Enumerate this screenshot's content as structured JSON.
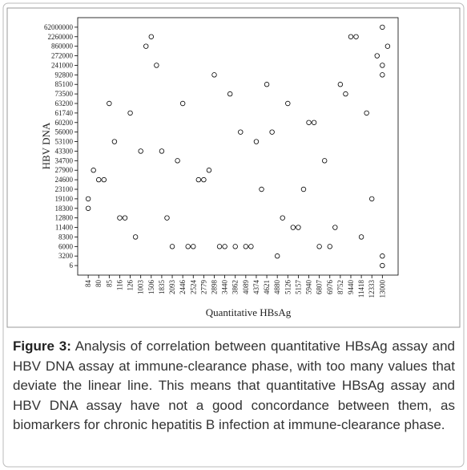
{
  "chart_data": {
    "type": "scatter",
    "x_label": "Quantitative HBsAg",
    "y_label": "HBV DNA",
    "xlim": [
      -1,
      60
    ],
    "ylim": [
      0,
      27
    ],
    "xticks": [
      {
        "value": 1,
        "label": "84"
      },
      {
        "value": 3,
        "label": "80"
      },
      {
        "value": 5,
        "label": "85"
      },
      {
        "value": 7,
        "label": "116"
      },
      {
        "value": 9,
        "label": "126"
      },
      {
        "value": 11,
        "label": "1003"
      },
      {
        "value": 13,
        "label": "1506"
      },
      {
        "value": 15,
        "label": "1835"
      },
      {
        "value": 17,
        "label": "2093"
      },
      {
        "value": 19,
        "label": "2446"
      },
      {
        "value": 21,
        "label": "2524"
      },
      {
        "value": 23,
        "label": "2779"
      },
      {
        "value": 25,
        "label": "2898"
      },
      {
        "value": 27,
        "label": "3440"
      },
      {
        "value": 29,
        "label": "3862"
      },
      {
        "value": 31,
        "label": "4089"
      },
      {
        "value": 33,
        "label": "4374"
      },
      {
        "value": 35,
        "label": "4621"
      },
      {
        "value": 37,
        "label": "4880"
      },
      {
        "value": 39,
        "label": "5126"
      },
      {
        "value": 41,
        "label": "5157"
      },
      {
        "value": 43,
        "label": "5940"
      },
      {
        "value": 45,
        "label": "6807"
      },
      {
        "value": 47,
        "label": "6976"
      },
      {
        "value": 49,
        "label": "8752"
      },
      {
        "value": 51,
        "label": "9440"
      },
      {
        "value": 53,
        "label": "11418"
      },
      {
        "value": 55,
        "label": "12333"
      },
      {
        "value": 57,
        "label": "13000"
      }
    ],
    "yticks": [
      {
        "value": 1,
        "label": "6"
      },
      {
        "value": 2,
        "label": "3200"
      },
      {
        "value": 3,
        "label": "6000"
      },
      {
        "value": 4,
        "label": "8300"
      },
      {
        "value": 5,
        "label": "11400"
      },
      {
        "value": 6,
        "label": "12800"
      },
      {
        "value": 7,
        "label": "18300"
      },
      {
        "value": 8,
        "label": "19100"
      },
      {
        "value": 9,
        "label": "23100"
      },
      {
        "value": 10,
        "label": "24600"
      },
      {
        "value": 11,
        "label": "27900"
      },
      {
        "value": 12,
        "label": "34700"
      },
      {
        "value": 13,
        "label": "43300"
      },
      {
        "value": 14,
        "label": "53100"
      },
      {
        "value": 15,
        "label": "56000"
      },
      {
        "value": 16,
        "label": "60200"
      },
      {
        "value": 17,
        "label": "61740"
      },
      {
        "value": 18,
        "label": "63200"
      },
      {
        "value": 19,
        "label": "73500"
      },
      {
        "value": 20,
        "label": "85100"
      },
      {
        "value": 21,
        "label": "92800"
      },
      {
        "value": 22,
        "label": "241000"
      },
      {
        "value": 23,
        "label": "272000"
      },
      {
        "value": 24,
        "label": "860000"
      },
      {
        "value": 25,
        "label": "2260000"
      },
      {
        "value": 26,
        "label": "62000000"
      }
    ],
    "color": "#000000",
    "grid": false,
    "x": [
      1,
      1,
      2,
      3,
      4,
      5,
      6,
      7,
      8,
      9,
      10,
      11,
      12,
      13,
      14,
      15,
      16,
      17,
      18,
      19,
      20,
      21,
      22,
      23,
      24,
      25,
      26,
      27,
      28,
      29,
      30,
      31,
      32,
      33,
      34,
      35,
      36,
      37,
      38,
      39,
      40,
      41,
      42,
      43,
      44,
      45,
      46,
      47,
      48,
      49,
      50,
      51,
      52,
      53,
      54,
      55,
      56,
      57,
      57,
      57,
      57,
      57,
      58
    ],
    "values": [
      8,
      7,
      11,
      10,
      10,
      18,
      14,
      6,
      6,
      17,
      4,
      13,
      24,
      25,
      22,
      13,
      6,
      3,
      12,
      18,
      3,
      3,
      10,
      10,
      11,
      21,
      3,
      3,
      19,
      3,
      15,
      3,
      3,
      14,
      9,
      20,
      15,
      2,
      6,
      18,
      5,
      5,
      9,
      16,
      16,
      3,
      12,
      3,
      5,
      20,
      19,
      25,
      25,
      4,
      17,
      8,
      23,
      26,
      22,
      21,
      2,
      1,
      24
    ]
  },
  "caption": {
    "label": "Figure 3:",
    "text": "Analysis of correlation between quantitative HBsAg assay and HBV DNA assay at immune-clearance phase, with too many values that deviate the linear line. This means that quantitative HBsAg assay and HBV DNA assay have not a good concordance between them, as biomarkers for chronic hepatitis B infection at immune-clearance phase."
  }
}
